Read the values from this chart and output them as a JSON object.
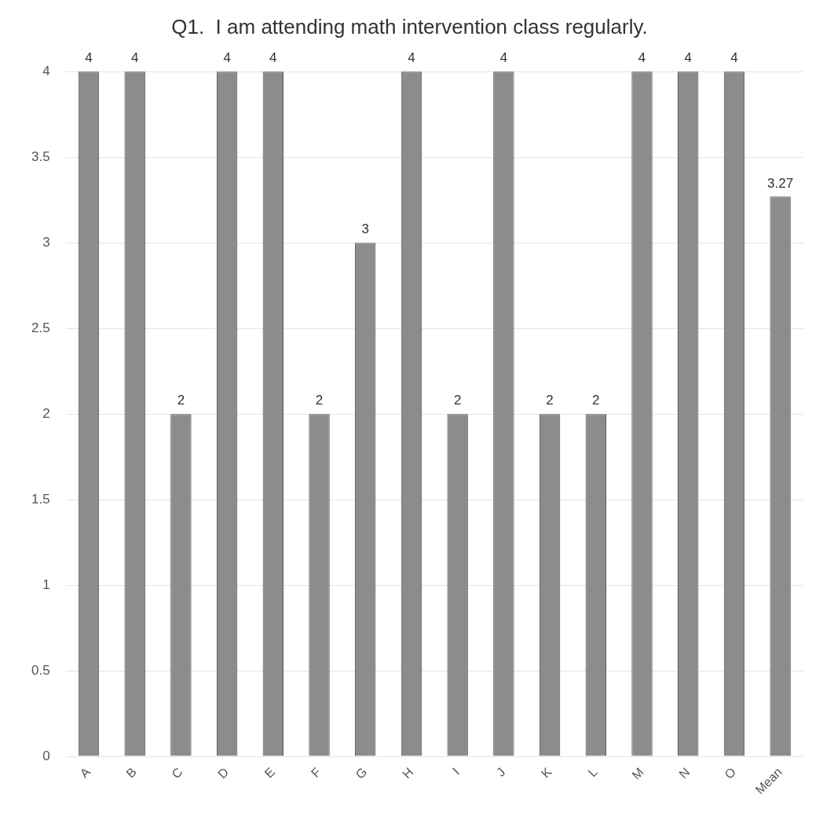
{
  "chart_data": {
    "type": "bar",
    "title": "Q1.  I am attending math intervention class regularly.",
    "categories": [
      "A",
      "B",
      "C",
      "D",
      "E",
      "F",
      "G",
      "H",
      "I",
      "J",
      "K",
      "L",
      "M",
      "N",
      "O",
      "Mean"
    ],
    "values": [
      4,
      4,
      2,
      4,
      4,
      2,
      3,
      4,
      2,
      4,
      2,
      2,
      4,
      4,
      4,
      3.27
    ],
    "color": "#8c8c8c",
    "ylim": [
      0,
      4
    ],
    "yticks": [
      0,
      0.5,
      1,
      1.5,
      2,
      2.5,
      3,
      3.5,
      4
    ],
    "grid": "y",
    "data_labels": true
  }
}
